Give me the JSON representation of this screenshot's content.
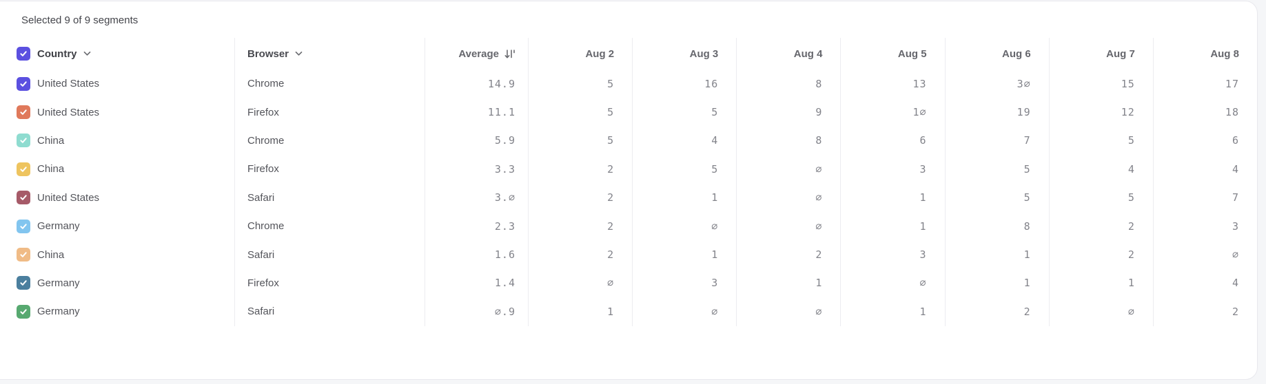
{
  "summary": {
    "text": "Selected 9 of 9 segments"
  },
  "table": {
    "headers": {
      "country": "Country",
      "browser": "Browser",
      "average": "Average"
    },
    "date_headers": [
      "Aug 2",
      "Aug 3",
      "Aug 4",
      "Aug 5",
      "Aug 6",
      "Aug 7",
      "Aug 8"
    ],
    "sort": {
      "column": "Average",
      "direction": "descending"
    },
    "select_all": {
      "checked": true,
      "color": "#5b50e0"
    },
    "rows": [
      {
        "checked": true,
        "checkbox_color": "#5b50e0",
        "country": "United States",
        "browser": "Chrome",
        "average": "14.9",
        "values": [
          5,
          16,
          8,
          13,
          30,
          15,
          17
        ]
      },
      {
        "checked": true,
        "checkbox_color": "#e0795b",
        "country": "United States",
        "browser": "Firefox",
        "average": "11.1",
        "values": [
          5,
          5,
          9,
          10,
          19,
          12,
          18
        ]
      },
      {
        "checked": true,
        "checkbox_color": "#8fdcd0",
        "country": "China",
        "browser": "Chrome",
        "average": "5.9",
        "values": [
          5,
          4,
          8,
          6,
          7,
          5,
          6
        ]
      },
      {
        "checked": true,
        "checkbox_color": "#eec45f",
        "country": "China",
        "browser": "Firefox",
        "average": "3.3",
        "values": [
          2,
          5,
          0,
          3,
          5,
          4,
          4
        ]
      },
      {
        "checked": true,
        "checkbox_color": "#a65a68",
        "country": "United States",
        "browser": "Safari",
        "average": "3.0",
        "values": [
          2,
          1,
          0,
          1,
          5,
          5,
          7
        ]
      },
      {
        "checked": true,
        "checkbox_color": "#82c5ef",
        "country": "Germany",
        "browser": "Chrome",
        "average": "2.3",
        "values": [
          2,
          0,
          0,
          1,
          8,
          2,
          3
        ]
      },
      {
        "checked": true,
        "checkbox_color": "#f0bb86",
        "country": "China",
        "browser": "Safari",
        "average": "1.6",
        "values": [
          2,
          1,
          2,
          3,
          1,
          2,
          0
        ]
      },
      {
        "checked": true,
        "checkbox_color": "#4b7f9e",
        "country": "Germany",
        "browser": "Firefox",
        "average": "1.4",
        "values": [
          0,
          3,
          1,
          0,
          1,
          1,
          4
        ]
      },
      {
        "checked": true,
        "checkbox_color": "#57a970",
        "country": "Germany",
        "browser": "Safari",
        "average": "0.9",
        "values": [
          1,
          0,
          0,
          1,
          2,
          0,
          2
        ]
      }
    ]
  },
  "icons": {
    "country_header": "chevron-down-icon",
    "browser_header": "chevron-down-icon",
    "average_header": "sort-descending-icon",
    "checkbox": "checkmark-icon"
  },
  "colors": {
    "page_background": "#f5f6f8",
    "card_background": "#ffffff",
    "card_border": "#e8e8ed",
    "column_separator": "#ececf0",
    "header_text": "#66676d",
    "body_text": "#53545a",
    "number_text": "#82838a",
    "accent_checkbox": "#5b50e0"
  }
}
